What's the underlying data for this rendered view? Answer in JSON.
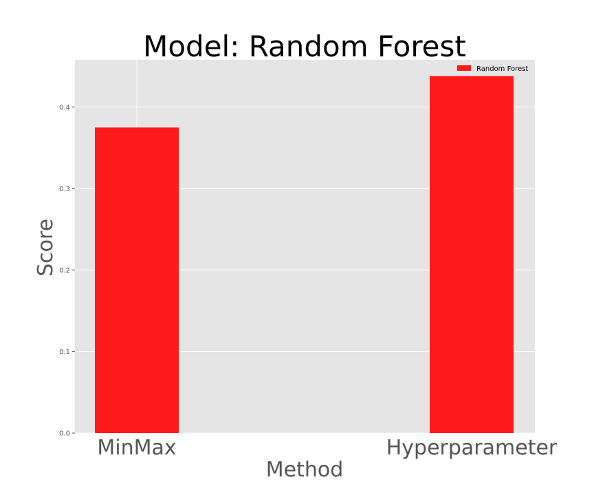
{
  "chart_data": {
    "type": "bar",
    "title": "Model: Random Forest",
    "xlabel": "Method",
    "ylabel": "Score",
    "categories": [
      "MinMax",
      "Hyperparameter"
    ],
    "series": [
      {
        "name": "Random Forest",
        "values": [
          0.375,
          0.438
        ]
      }
    ],
    "ylim": [
      0,
      0.458
    ],
    "yticks": [
      0.0,
      0.1,
      0.2,
      0.3,
      0.4
    ],
    "ytick_labels": [
      "0.0",
      "0.1",
      "0.2",
      "0.3",
      "0.4"
    ],
    "grid": true,
    "legend_position": "top-right",
    "colors": {
      "bar": "#ff1a1a",
      "plot_bg": "#e5e5e5",
      "grid": "#ffffff"
    }
  }
}
